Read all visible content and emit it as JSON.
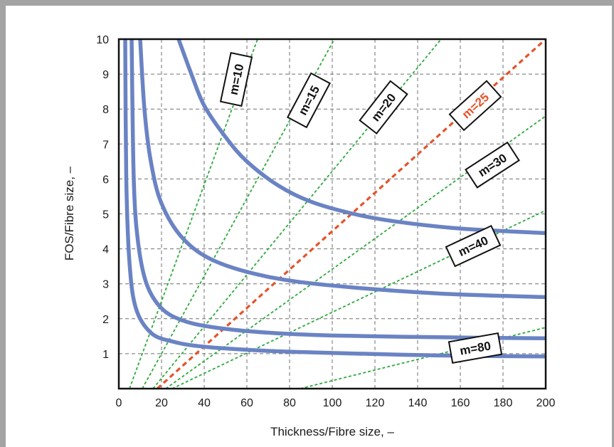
{
  "chart_data": {
    "type": "line",
    "xlabel": "Thickness/Fibre size, –",
    "ylabel": "FOS/Fibre size, –",
    "xlim": [
      0,
      200
    ],
    "ylim": [
      0,
      10
    ],
    "x_ticks": [
      "0",
      "20",
      "40",
      "60",
      "80",
      "100",
      "120",
      "140",
      "160",
      "180",
      "200"
    ],
    "y_ticks": [
      "1",
      "2",
      "3",
      "4",
      "5",
      "6",
      "7",
      "8",
      "9",
      "10"
    ],
    "grid": true,
    "grid_style": "dashed",
    "curves": [
      {
        "points": [
          [
            3,
            10
          ],
          [
            3.5,
            6
          ],
          [
            5,
            3.6
          ],
          [
            8,
            2.3
          ],
          [
            15,
            1.6
          ],
          [
            25,
            1.35
          ],
          [
            40,
            1.2
          ],
          [
            70,
            1.08
          ],
          [
            100,
            1.02
          ],
          [
            150,
            0.95
          ],
          [
            200,
            0.92
          ]
        ]
      },
      {
        "points": [
          [
            6,
            10
          ],
          [
            7,
            6
          ],
          [
            9,
            4.2
          ],
          [
            13,
            3.0
          ],
          [
            20,
            2.3
          ],
          [
            30,
            1.95
          ],
          [
            45,
            1.75
          ],
          [
            70,
            1.6
          ],
          [
            100,
            1.52
          ],
          [
            150,
            1.47
          ],
          [
            200,
            1.44
          ]
        ]
      },
      {
        "points": [
          [
            10,
            10
          ],
          [
            12,
            8
          ],
          [
            15,
            6.5
          ],
          [
            20,
            5.3
          ],
          [
            30,
            4.3
          ],
          [
            45,
            3.65
          ],
          [
            70,
            3.2
          ],
          [
            100,
            2.95
          ],
          [
            150,
            2.72
          ],
          [
            200,
            2.62
          ]
        ]
      },
      {
        "points": [
          [
            28,
            10
          ],
          [
            34,
            9
          ],
          [
            40,
            8.1
          ],
          [
            50,
            7.2
          ],
          [
            60,
            6.5
          ],
          [
            75,
            5.8
          ],
          [
            90,
            5.35
          ],
          [
            110,
            5.0
          ],
          [
            130,
            4.78
          ],
          [
            160,
            4.58
          ],
          [
            200,
            4.45
          ]
        ]
      }
    ],
    "m_lines": [
      {
        "label": "m=10",
        "from": [
          5,
          0
        ],
        "to": [
          65,
          10
        ],
        "color": "#2eaa3c",
        "box_at": [
          55,
          8.85
        ],
        "box_angle": -78
      },
      {
        "label": "m=15",
        "from": [
          11,
          0
        ],
        "to": [
          101,
          10
        ],
        "color": "#2eaa3c",
        "box_at": [
          89,
          8.25
        ],
        "box_angle": -62
      },
      {
        "label": "m=20",
        "from": [
          16,
          0
        ],
        "to": [
          151,
          10
        ],
        "color": "#2eaa3c",
        "box_at": [
          124,
          8.05
        ],
        "box_angle": -52
      },
      {
        "label": "m=25",
        "from": [
          18,
          0
        ],
        "to": [
          200,
          10
        ],
        "color": "#e4532a",
        "box_at": [
          167,
          8.1
        ],
        "box_angle": -42
      },
      {
        "label": "m=30",
        "from": [
          22,
          0
        ],
        "to": [
          200,
          7.8
        ],
        "color": "#2eaa3c",
        "box_at": [
          175,
          6.4
        ],
        "box_angle": -33
      },
      {
        "label": "m=40",
        "from": [
          25,
          0
        ],
        "to": [
          200,
          5.1
        ],
        "color": "#2eaa3c",
        "box_at": [
          166,
          4.08
        ],
        "box_angle": -25
      },
      {
        "label": "m=80",
        "from": [
          85,
          0
        ],
        "to": [
          200,
          1.75
        ],
        "color": "#2eaa3c",
        "box_at": [
          167,
          1.16
        ],
        "box_angle": -10
      }
    ]
  },
  "colors": {
    "curve": "#6a83c4",
    "green_line": "#2eaa3c",
    "highlight_line": "#e4532a",
    "grid": "#6f6f6f",
    "frame": "#a3a3a3"
  }
}
